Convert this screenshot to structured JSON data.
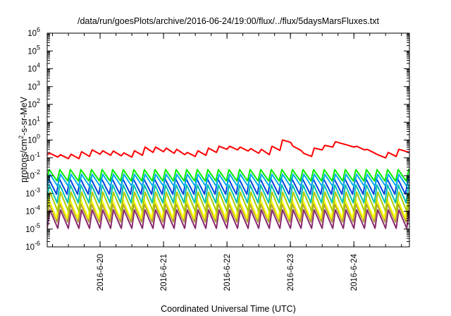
{
  "chart_data": {
    "type": "line",
    "title": "/data/run/goesPlots/archive/2016-06-24/19:00/flux/../flux/5daysMarsFluxes.txt",
    "xlabel": "Coordinated Universal Time (UTC)",
    "ylabel": "protons/cm²-s-sr-MeV",
    "yscale": "log",
    "ylim": [
      1e-06,
      1000000.0
    ],
    "xlim": [
      "2016-06-19T04:00",
      "2016-06-24T21:00"
    ],
    "grid": false,
    "legend": "none",
    "y_ticks": [
      {
        "base": "10",
        "exp": "-6"
      },
      {
        "base": "10",
        "exp": "-5"
      },
      {
        "base": "10",
        "exp": "-4"
      },
      {
        "base": "10",
        "exp": "-3"
      },
      {
        "base": "10",
        "exp": "-2"
      },
      {
        "base": "10",
        "exp": "-1"
      },
      {
        "base": "10",
        "exp": "0"
      },
      {
        "base": "10",
        "exp": "1"
      },
      {
        "base": "10",
        "exp": "2"
      },
      {
        "base": "10",
        "exp": "3"
      },
      {
        "base": "10",
        "exp": "4"
      },
      {
        "base": "10",
        "exp": "5"
      },
      {
        "base": "10",
        "exp": "6"
      }
    ],
    "x_ticks": [
      {
        "label": "2016-6-20",
        "date": "2016-06-20T00:00"
      },
      {
        "label": "2016-6-21",
        "date": "2016-06-21T00:00"
      },
      {
        "label": "2016-6-22",
        "date": "2016-06-22T00:00"
      },
      {
        "label": "2016-6-23",
        "date": "2016-06-23T00:00"
      },
      {
        "label": "2016-6-24",
        "date": "2016-06-24T00:00"
      }
    ],
    "series": [
      {
        "color": "#ff0000",
        "x": [
          "2016-06-19T04:00",
          "2016-06-19T05:00",
          "2016-06-19T08:00",
          "2016-06-19T09:00",
          "2016-06-19T12:00",
          "2016-06-19T13:00",
          "2016-06-19T16:00",
          "2016-06-19T17:00",
          "2016-06-19T20:00",
          "2016-06-19T21:00",
          "2016-06-20T00:00",
          "2016-06-20T01:00",
          "2016-06-20T04:00",
          "2016-06-20T05:00",
          "2016-06-20T08:00",
          "2016-06-20T09:00",
          "2016-06-20T12:00",
          "2016-06-20T13:00",
          "2016-06-20T16:00",
          "2016-06-20T17:00",
          "2016-06-20T20:00",
          "2016-06-20T21:00",
          "2016-06-21T00:00",
          "2016-06-21T01:00",
          "2016-06-21T04:00",
          "2016-06-21T05:00",
          "2016-06-21T08:00",
          "2016-06-21T09:00",
          "2016-06-21T12:00",
          "2016-06-21T13:00",
          "2016-06-21T16:00",
          "2016-06-21T17:00",
          "2016-06-21T20:00",
          "2016-06-21T21:00",
          "2016-06-22T00:00",
          "2016-06-22T01:00",
          "2016-06-22T04:00",
          "2016-06-22T05:00",
          "2016-06-22T08:00",
          "2016-06-22T09:00",
          "2016-06-22T12:00",
          "2016-06-22T13:00",
          "2016-06-22T16:00",
          "2016-06-22T17:00",
          "2016-06-22T20:00",
          "2016-06-22T21:00",
          "2016-06-23T00:00",
          "2016-06-23T01:00",
          "2016-06-23T04:00",
          "2016-06-23T05:00",
          "2016-06-23T08:00",
          "2016-06-23T09:00",
          "2016-06-23T12:00",
          "2016-06-23T13:00",
          "2016-06-23T16:00",
          "2016-06-23T17:00",
          "2016-06-23T20:00",
          "2016-06-23T21:00",
          "2016-06-24T00:00",
          "2016-06-24T01:00",
          "2016-06-24T04:00",
          "2016-06-24T05:00",
          "2016-06-24T08:00",
          "2016-06-24T09:00",
          "2016-06-24T12:00",
          "2016-06-24T13:00",
          "2016-06-24T16:00",
          "2016-06-24T17:00",
          "2016-06-24T21:00"
        ],
        "y": [
          0.15,
          0.18,
          0.11,
          0.15,
          0.09,
          0.16,
          0.09,
          0.22,
          0.12,
          0.28,
          0.16,
          0.25,
          0.14,
          0.24,
          0.13,
          0.19,
          0.11,
          0.25,
          0.14,
          0.4,
          0.2,
          0.4,
          0.22,
          0.35,
          0.18,
          0.3,
          0.15,
          0.2,
          0.12,
          0.25,
          0.14,
          0.35,
          0.2,
          0.45,
          0.3,
          0.45,
          0.28,
          0.4,
          0.24,
          0.33,
          0.18,
          0.3,
          0.15,
          0.45,
          0.26,
          1.0,
          0.75,
          0.45,
          0.26,
          0.18,
          0.12,
          0.35,
          0.28,
          0.5,
          0.4,
          0.8,
          0.6,
          0.55,
          0.4,
          0.45,
          0.28,
          0.3,
          0.18,
          0.15,
          0.1,
          0.2,
          0.12,
          0.3,
          0.2
        ]
      },
      {
        "color": "#00ee00",
        "peak": 0.022,
        "trough": 0.005
      },
      {
        "color": "#00aaee",
        "peak": 0.012,
        "trough": 0.0025
      },
      {
        "color": "#0044dd",
        "peak": 0.007,
        "trough": 0.0009
      },
      {
        "color": "#00c0b0",
        "peak": 0.003,
        "trough": 0.0003
      },
      {
        "color": "#aacc00",
        "peak": 0.0012,
        "trough": 0.0001
      },
      {
        "color": "#ffff00",
        "peak": 0.0005,
        "trough": 4e-05
      },
      {
        "color": "#b0a030",
        "peak": 0.00025,
        "trough": 2.5e-05
      },
      {
        "color": "#8b2a70",
        "peak": 0.00012,
        "trough": 1.1e-05
      }
    ],
    "oscillation_period_hours": 4
  }
}
